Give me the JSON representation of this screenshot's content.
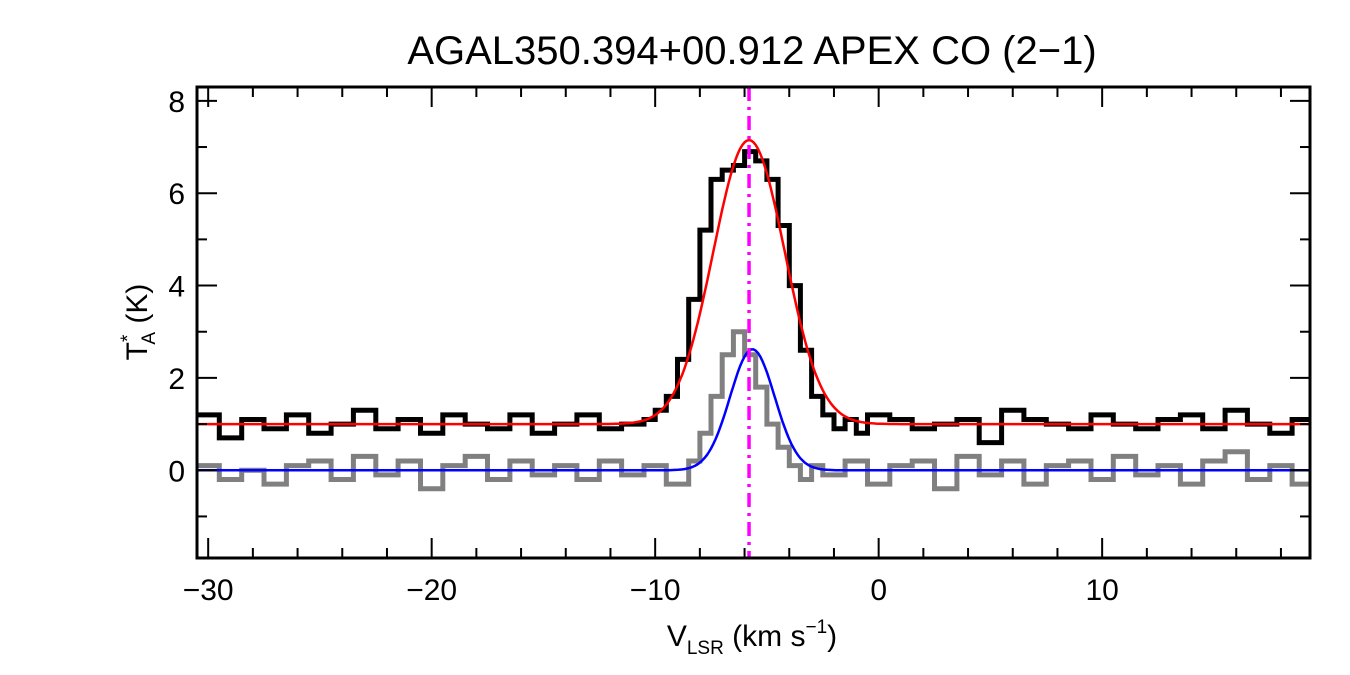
{
  "chart_data": {
    "type": "line",
    "title": "AGAL350.394+00.912  APEX CO (2−1)",
    "xlabel": {
      "main": "V",
      "sub": "LSR",
      "rest": " (km s",
      "sup": "−1",
      "close": ")"
    },
    "ylabel": {
      "main": "T",
      "sup": "*",
      "sub": "A",
      "rest": " (K)"
    },
    "xlim": [
      -30.5,
      19.3
    ],
    "ylim": [
      -1.9,
      8.3
    ],
    "x_ticks": [
      {
        "value": -30,
        "label": "−30"
      },
      {
        "value": -20,
        "label": "−20"
      },
      {
        "value": -10,
        "label": "−10"
      },
      {
        "value": 0,
        "label": "0"
      },
      {
        "value": 10,
        "label": "10"
      }
    ],
    "y_ticks": [
      {
        "value": 0,
        "label": "0"
      },
      {
        "value": 2,
        "label": "2"
      },
      {
        "value": 4,
        "label": "4"
      },
      {
        "value": 6,
        "label": "6"
      },
      {
        "value": 8,
        "label": "8"
      }
    ],
    "x_minor_step": 2,
    "y_minor_step": 1,
    "grid": false,
    "reference_line": {
      "x": -5.8,
      "color": "#ff00ff",
      "style": "dash-dot"
    },
    "series": [
      {
        "style": "histogram",
        "color": "#000000",
        "x": [
          -30.5,
          -29.5,
          -28.5,
          -27.5,
          -26.5,
          -25.5,
          -24.5,
          -23.5,
          -22.5,
          -21.5,
          -20.5,
          -19.5,
          -18.5,
          -17.5,
          -16.5,
          -15.5,
          -14.5,
          -13.5,
          -12.5,
          -11.5,
          -10.5,
          -10.0,
          -9.5,
          -9.0,
          -8.5,
          -8.0,
          -7.5,
          -7.0,
          -6.5,
          -6.0,
          -5.5,
          -5.0,
          -4.5,
          -4.0,
          -3.5,
          -3.0,
          -2.5,
          -2.0,
          -1.5,
          -1.0,
          -0.5,
          0.5,
          1.5,
          2.5,
          3.5,
          4.5,
          5.5,
          6.5,
          7.5,
          8.5,
          9.5,
          10.5,
          11.5,
          12.5,
          13.5,
          14.5,
          15.5,
          16.5,
          17.5,
          18.5,
          19.3
        ],
        "y": [
          1.2,
          0.7,
          1.1,
          0.9,
          1.2,
          0.8,
          1.0,
          1.3,
          0.9,
          1.1,
          0.8,
          1.2,
          1.0,
          0.9,
          1.2,
          0.8,
          1.0,
          1.2,
          0.9,
          1.0,
          1.1,
          1.3,
          1.6,
          2.4,
          3.7,
          5.2,
          6.3,
          6.5,
          6.6,
          6.9,
          6.7,
          6.3,
          5.3,
          4.0,
          2.6,
          1.6,
          1.2,
          0.9,
          1.1,
          0.8,
          1.2,
          1.1,
          0.9,
          1.0,
          1.1,
          0.6,
          1.3,
          1.1,
          1.0,
          0.9,
          1.2,
          1.0,
          0.9,
          1.1,
          1.2,
          0.9,
          1.3,
          1.0,
          0.8,
          1.1,
          1.0
        ]
      },
      {
        "style": "histogram",
        "color": "#808080",
        "x": [
          -30.5,
          -29.5,
          -28.5,
          -27.5,
          -26.5,
          -25.5,
          -24.5,
          -23.5,
          -22.5,
          -21.5,
          -20.5,
          -19.5,
          -18.5,
          -17.5,
          -16.5,
          -15.5,
          -14.5,
          -13.5,
          -12.5,
          -11.5,
          -10.5,
          -9.5,
          -8.5,
          -8.0,
          -7.5,
          -7.0,
          -6.5,
          -6.0,
          -5.5,
          -5.0,
          -4.5,
          -4.0,
          -3.5,
          -3.0,
          -2.5,
          -1.5,
          -0.5,
          0.5,
          1.5,
          2.5,
          3.5,
          4.5,
          5.5,
          6.5,
          7.5,
          8.5,
          9.5,
          10.5,
          11.5,
          12.5,
          13.5,
          14.5,
          15.5,
          16.5,
          17.5,
          18.5,
          19.3
        ],
        "y": [
          0.1,
          -0.2,
          0.0,
          -0.3,
          0.1,
          0.2,
          -0.2,
          0.3,
          -0.1,
          0.2,
          -0.4,
          0.1,
          0.3,
          -0.2,
          0.2,
          -0.1,
          0.1,
          -0.2,
          0.2,
          -0.1,
          0.1,
          -0.3,
          0.2,
          0.8,
          1.6,
          2.5,
          3.0,
          2.5,
          1.8,
          1.0,
          0.5,
          0.1,
          -0.2,
          0.1,
          -0.1,
          0.2,
          -0.3,
          0.1,
          0.2,
          -0.4,
          0.3,
          -0.1,
          0.2,
          -0.3,
          0.1,
          0.2,
          -0.2,
          0.3,
          -0.1,
          0.1,
          -0.3,
          0.2,
          0.4,
          -0.2,
          0.1,
          -0.3,
          0.0
        ]
      },
      {
        "style": "line",
        "color": "#ff0000",
        "gaussian": {
          "baseline": 1.0,
          "amplitude": 6.15,
          "center": -5.8,
          "sigma": 1.6
        }
      },
      {
        "style": "line",
        "color": "#0000ff",
        "gaussian": {
          "baseline": 0.0,
          "amplitude": 2.62,
          "center": -5.65,
          "sigma": 1.0
        }
      }
    ]
  }
}
